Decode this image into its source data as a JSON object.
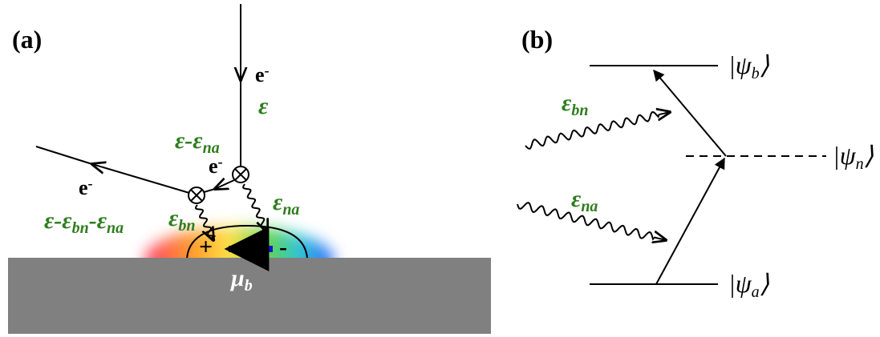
{
  "panel_a": {
    "label": "(a)",
    "incoming_electron": [
      {
        "t": "e",
        "sup": "-"
      }
    ],
    "incoming_energy": [
      {
        "t": "ε"
      }
    ],
    "intermediate_electron": [
      {
        "t": "e",
        "sup": "-"
      }
    ],
    "intermediate_energy": [
      {
        "t": "ε-ε",
        "sub": "na"
      }
    ],
    "outgoing_electron": [
      {
        "t": "e",
        "sup": "-"
      }
    ],
    "outgoing_energy": [
      {
        "t": "ε-ε",
        "sub": "bn"
      },
      {
        "t": "-ε",
        "sub": "na"
      }
    ],
    "photon_bn": [
      {
        "t": "ε",
        "sub": "bn"
      }
    ],
    "photon_na": [
      {
        "t": "ε",
        "sub": "na"
      }
    ],
    "plus": "+",
    "minus": "-",
    "dipole": [
      {
        "t": "μ",
        "sub": "b"
      }
    ]
  },
  "panel_b": {
    "label": "(b)",
    "level_b": [
      {
        "t": "|ψ",
        "sub": "b",
        "end": "⟩"
      }
    ],
    "level_n": [
      {
        "t": "|ψ",
        "sub": "n",
        "end": "⟩"
      }
    ],
    "level_a": [
      {
        "t": "|ψ",
        "sub": "a",
        "end": "⟩"
      }
    ],
    "photon_bn": [
      {
        "t": "ε",
        "sub": "bn"
      }
    ],
    "photon_na": [
      {
        "t": "ε",
        "sub": "na"
      }
    ]
  }
}
